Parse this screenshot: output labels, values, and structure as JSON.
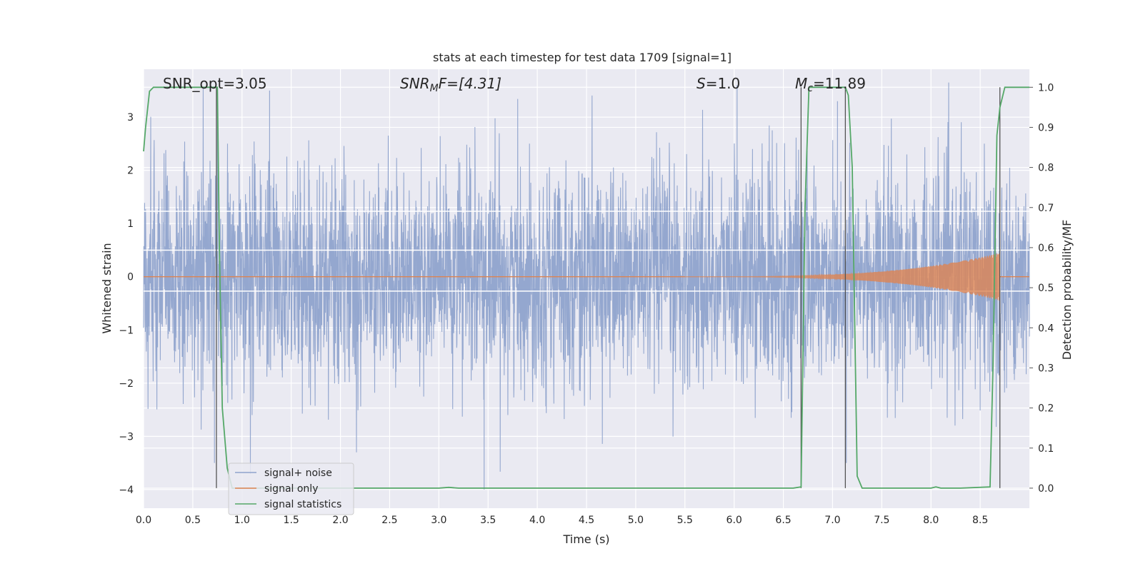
{
  "chart_data": {
    "type": "line",
    "title": "stats at each timestep for test data 1709 [signal=1]",
    "xlabel": "Time (s)",
    "ylabel": "Whitened strain",
    "y2label": "Detection probability/MF",
    "xlim": [
      0.0,
      9.0
    ],
    "ylim": [
      -4.35,
      3.9
    ],
    "y2lim": [
      -0.05,
      1.045
    ],
    "x_ticks": [
      "0.0",
      "0.5",
      "1.0",
      "1.5",
      "2.0",
      "2.5",
      "3.0",
      "3.5",
      "4.0",
      "4.5",
      "5.0",
      "5.5",
      "6.0",
      "6.5",
      "7.0",
      "7.5",
      "8.0",
      "8.5"
    ],
    "y_ticks": [
      "3",
      "2",
      "1",
      "0",
      "−1",
      "−2",
      "−3",
      "−4"
    ],
    "y2_ticks": [
      "1.0",
      "0.9",
      "0.8",
      "0.7",
      "0.6",
      "0.5",
      "0.4",
      "0.3",
      "0.2",
      "0.1",
      "0.0"
    ],
    "grid": true,
    "legend_position": "lower-left",
    "annotations": {
      "snr_opt": "SNR_opt=3.05",
      "snr_mf_main": "SNR",
      "snr_mf_sub": "M",
      "snr_mf_rest": "F=[4.31]",
      "s_main": "S",
      "s_rest": "=1.0",
      "mc_main": "M",
      "mc_sub": "c",
      "mc_rest": "=11.89"
    },
    "series": [
      {
        "name": "signal+ noise",
        "color": "#8fa3cc",
        "description_kind": "noise",
        "amplitude_sigma": 1.0,
        "amplitude_max": 3.65,
        "amplitude_min": -4.0
      },
      {
        "name": "signal only",
        "color": "#dd8452",
        "description_kind": "chirp",
        "chirp_start": 5.5,
        "chirp_end": 8.7,
        "amplitude_at_end": 0.45
      },
      {
        "name": "signal statistics",
        "color": "#55a868",
        "axis": "right",
        "x": [
          0.0,
          0.02,
          0.06,
          0.1,
          0.2,
          0.5,
          0.7,
          0.73,
          0.75,
          0.77,
          0.8,
          0.85,
          0.9,
          1.0,
          2.0,
          3.0,
          3.1,
          3.2,
          4.0,
          5.0,
          6.0,
          6.5,
          6.6,
          6.68,
          6.72,
          6.76,
          6.8,
          7.0,
          7.1,
          7.13,
          7.16,
          7.2,
          7.25,
          7.3,
          7.5,
          8.0,
          8.05,
          8.1,
          8.3,
          8.6,
          8.63,
          8.67,
          8.7,
          8.75,
          8.8,
          9.0
        ],
        "y": [
          0.84,
          0.9,
          0.99,
          1.0,
          1.0,
          1.0,
          1.0,
          1.0,
          1.0,
          0.6,
          0.2,
          0.05,
          0.0,
          0.0,
          0.0,
          0.0,
          0.002,
          0.0,
          0.0,
          0.0,
          0.0,
          0.0,
          0.0,
          0.003,
          0.7,
          1.0,
          1.0,
          1.0,
          1.0,
          1.0,
          0.98,
          0.8,
          0.03,
          0.0,
          0.0,
          0.0,
          0.003,
          0.0,
          0.0,
          0.003,
          0.3,
          0.88,
          0.95,
          1.0,
          1.0,
          1.0
        ]
      }
    ],
    "vertical_lines_x": [
      0.74,
      6.68,
      7.13,
      8.7
    ],
    "horizontal_band_levels": [
      1.23,
      0.5,
      -0.27
    ]
  }
}
